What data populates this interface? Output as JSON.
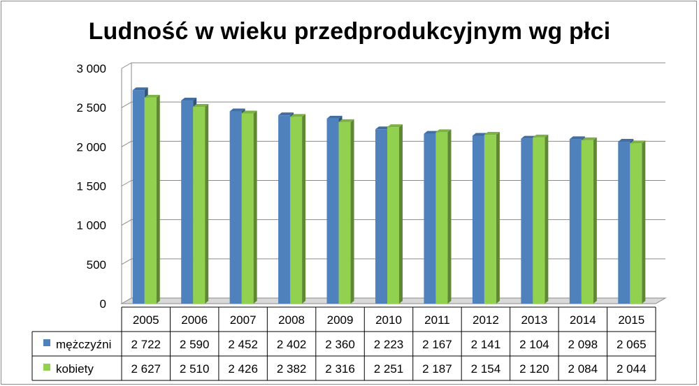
{
  "chart_data": {
    "type": "bar",
    "title": "Ludność w wieku przedprodukcyjnym wg płci",
    "categories": [
      "2005",
      "2006",
      "2007",
      "2008",
      "2009",
      "2010",
      "2011",
      "2012",
      "2013",
      "2014",
      "2015"
    ],
    "series": [
      {
        "name": "mężczyźni",
        "values": [
          2722,
          2590,
          2452,
          2402,
          2360,
          2223,
          2167,
          2141,
          2104,
          2098,
          2065
        ],
        "labels": [
          "2 722",
          "2 590",
          "2 452",
          "2 402",
          "2 360",
          "2 223",
          "2 167",
          "2 141",
          "2 104",
          "2 098",
          "2 065"
        ],
        "color": "#4f81bd"
      },
      {
        "name": "kobiety",
        "values": [
          2627,
          2510,
          2426,
          2382,
          2316,
          2251,
          2187,
          2154,
          2120,
          2084,
          2044
        ],
        "labels": [
          "2 627",
          "2 510",
          "2 426",
          "2 382",
          "2 316",
          "2 251",
          "2 187",
          "2 154",
          "2 120",
          "2 084",
          "2 044"
        ],
        "color": "#92d050"
      }
    ],
    "ylim": [
      0,
      3000
    ],
    "yticks": [
      0,
      500,
      1000,
      1500,
      2000,
      2500,
      3000
    ],
    "ytick_labels": [
      "0",
      "500",
      "1 000",
      "1 500",
      "2 000",
      "2 500",
      "3 000"
    ],
    "grid": true,
    "legend": "data-table",
    "data_table": true
  }
}
